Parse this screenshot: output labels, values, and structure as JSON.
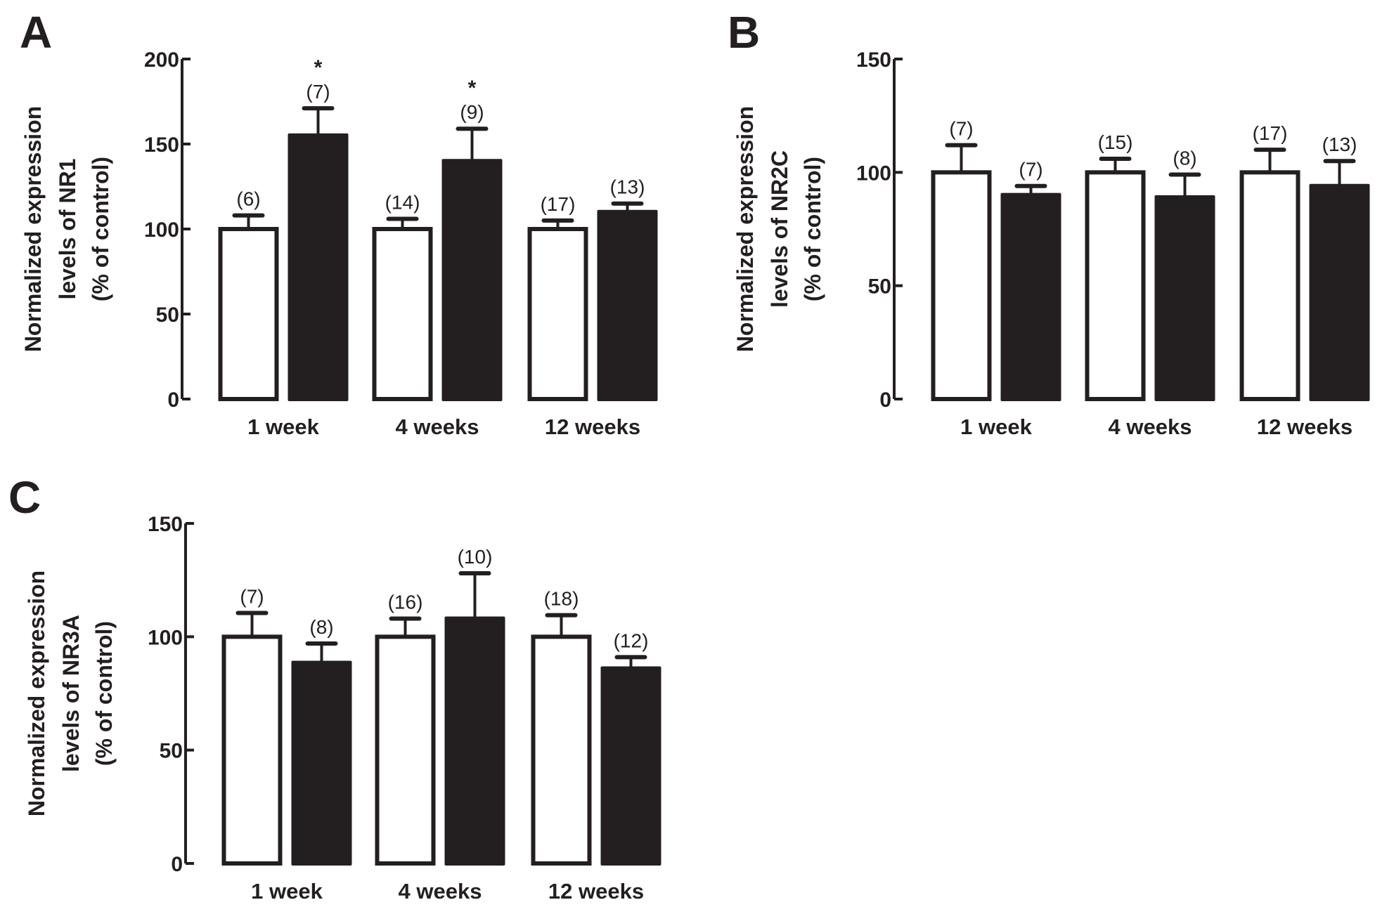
{
  "colors": {
    "control": "#ffffff",
    "treated": "#231f20",
    "ink": "#231f20"
  },
  "chart_data": [
    {
      "panel": "A",
      "type": "bar",
      "ylabel": [
        "Normalized expression",
        "levels of NR1",
        "(% of control)"
      ],
      "ylim": [
        0,
        200
      ],
      "yticks": [
        "0",
        "50",
        "100",
        "150",
        "200"
      ],
      "categories": [
        "1 week",
        "4 weeks",
        "12 weeks"
      ],
      "grid": false,
      "series": [
        {
          "fill": "white",
          "values": [
            100,
            100,
            100
          ],
          "errors": [
            8,
            6,
            5
          ],
          "n_labels": [
            "(6)",
            "(14)",
            "(17)"
          ],
          "significance": [
            "",
            "",
            ""
          ]
        },
        {
          "fill": "black",
          "values": [
            155,
            140,
            110
          ],
          "errors": [
            16,
            19,
            5
          ],
          "n_labels": [
            "(7)",
            "(9)",
            "(13)"
          ],
          "significance": [
            "*",
            "*",
            ""
          ]
        }
      ]
    },
    {
      "panel": "B",
      "type": "bar",
      "ylabel": [
        "Normalized expression",
        "levels of NR2C",
        "(% of control)"
      ],
      "ylim": [
        0,
        150
      ],
      "yticks": [
        "0",
        "50",
        "100",
        "150"
      ],
      "categories": [
        "1 week",
        "4 weeks",
        "12 weeks"
      ],
      "grid": false,
      "series": [
        {
          "fill": "white",
          "values": [
            100,
            100,
            100
          ],
          "errors": [
            12,
            6,
            10
          ],
          "n_labels": [
            "(7)",
            "(15)",
            "(17)"
          ],
          "significance": [
            "",
            "",
            ""
          ]
        },
        {
          "fill": "black",
          "values": [
            90,
            89,
            94
          ],
          "errors": [
            4,
            10,
            11
          ],
          "n_labels": [
            "(7)",
            "(8)",
            "(13)"
          ],
          "significance": [
            "",
            "",
            ""
          ]
        }
      ]
    },
    {
      "panel": "C",
      "type": "bar",
      "ylabel": [
        "Normalized expression",
        "levels of NR3A",
        "(% of control)"
      ],
      "ylim": [
        0,
        150
      ],
      "yticks": [
        "0",
        "50",
        "100",
        "150"
      ],
      "categories": [
        "1 week",
        "4 weeks",
        "12 weeks"
      ],
      "grid": false,
      "series": [
        {
          "fill": "white",
          "values": [
            100,
            100,
            100
          ],
          "errors": [
            10.5,
            8,
            9.5
          ],
          "n_labels": [
            "(7)",
            "(16)",
            "(18)"
          ],
          "significance": [
            "",
            "",
            ""
          ]
        },
        {
          "fill": "black",
          "values": [
            88.5,
            108,
            86
          ],
          "errors": [
            8.5,
            20,
            5
          ],
          "n_labels": [
            "(8)",
            "(10)",
            "(12)"
          ],
          "significance": [
            "",
            "",
            ""
          ]
        }
      ]
    }
  ]
}
